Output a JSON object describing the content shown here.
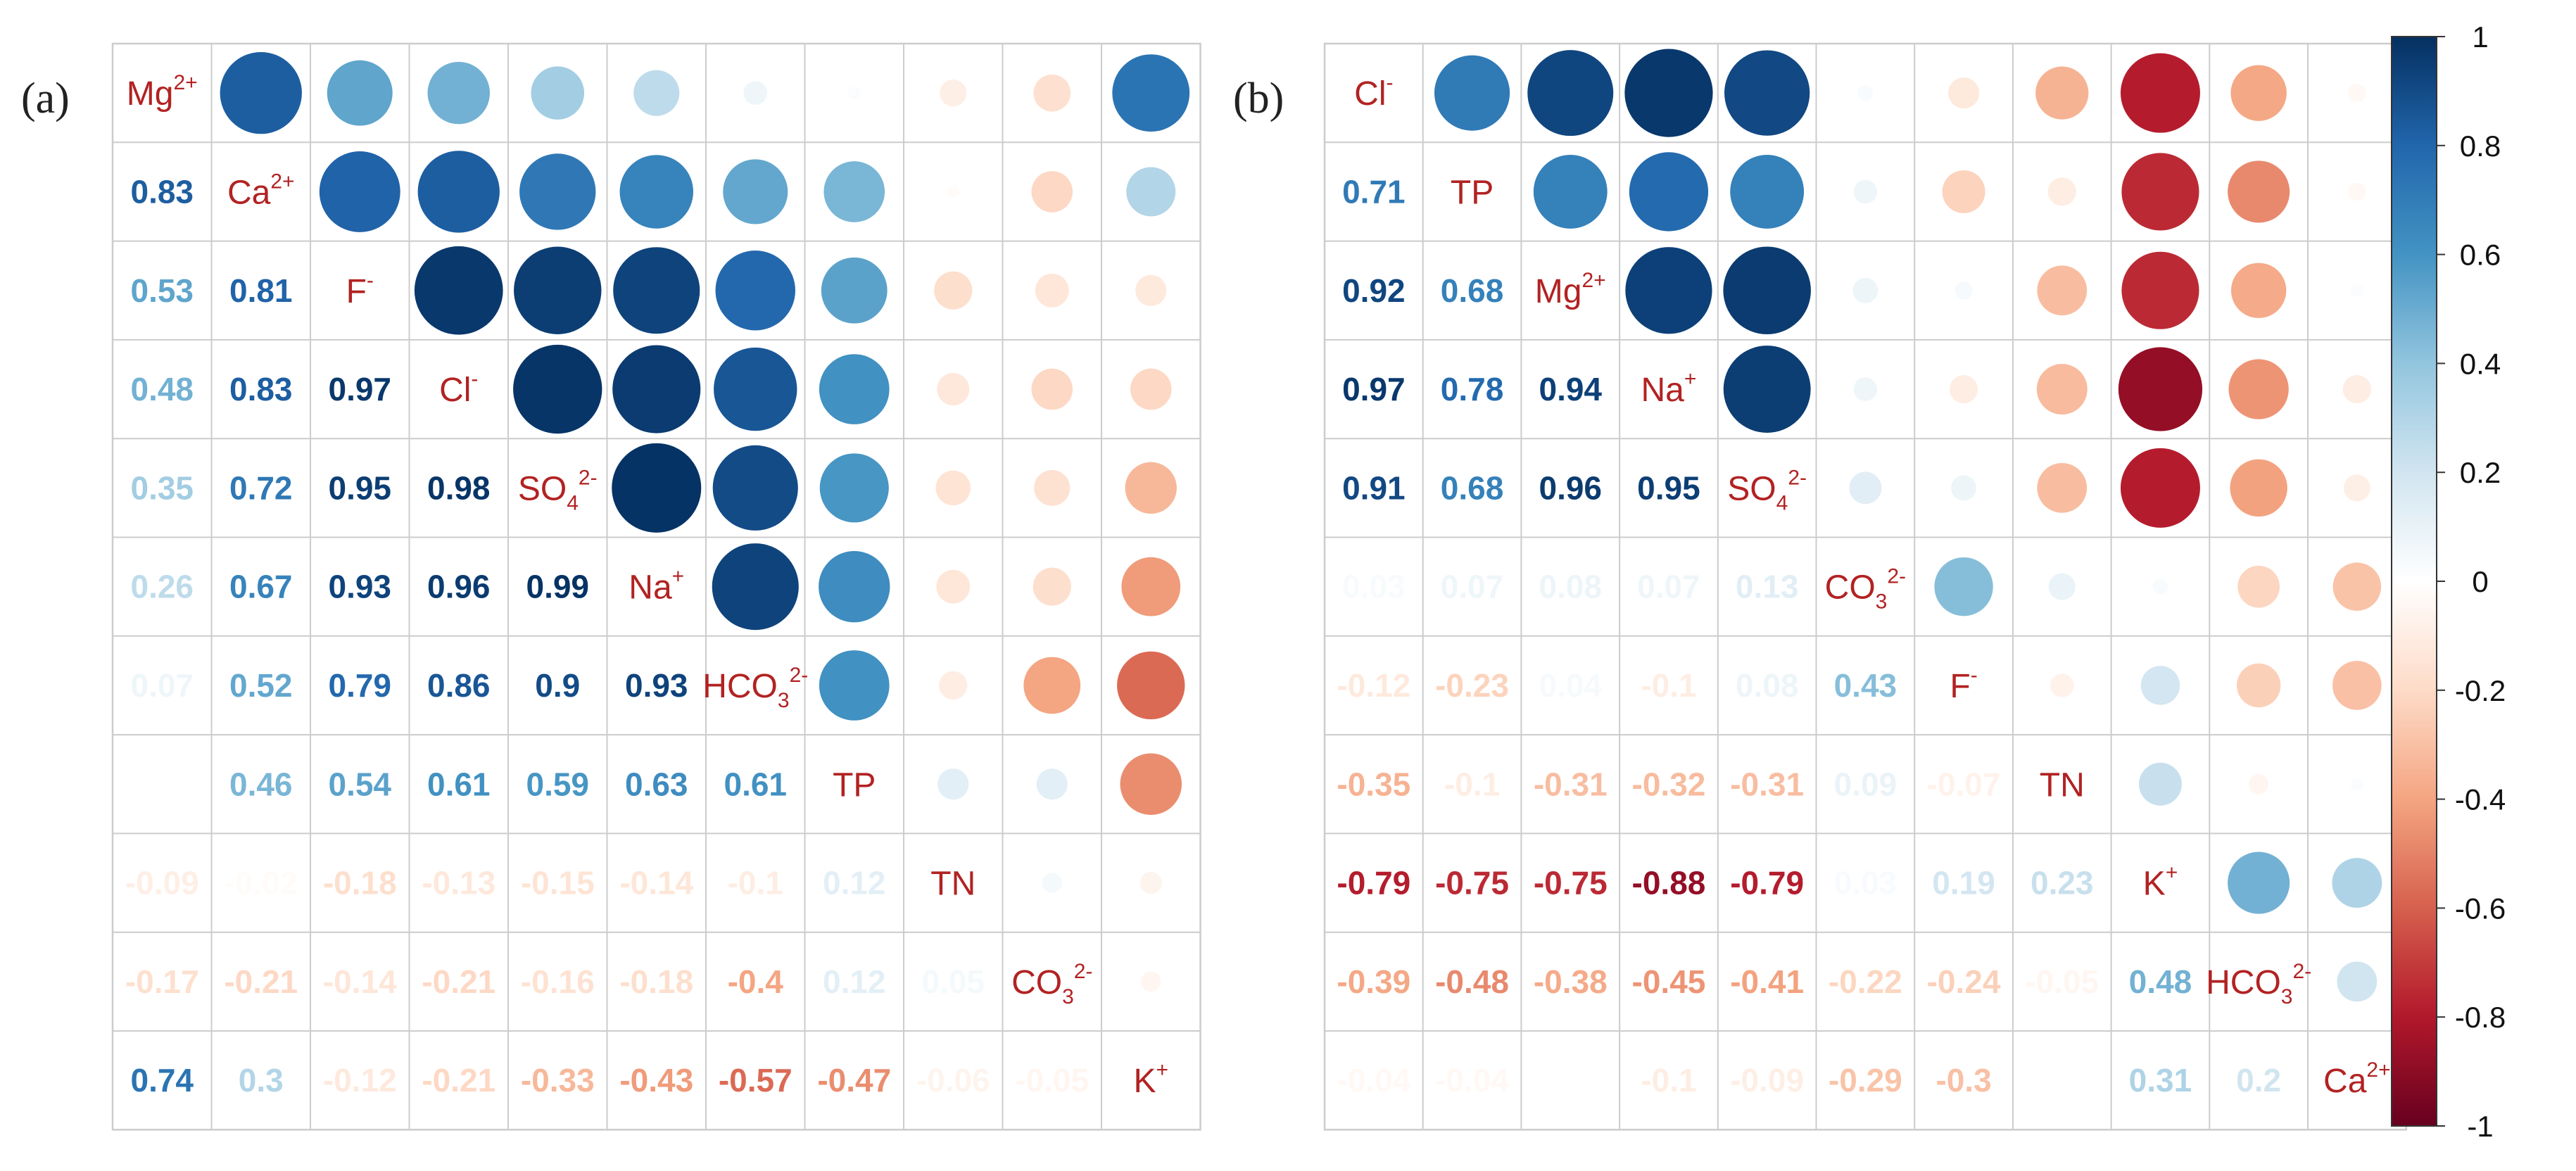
{
  "chart_data": [
    {
      "type": "heatmap",
      "panel": "(a)",
      "variables": [
        {
          "base": "Mg",
          "sup": "2+",
          "sub": ""
        },
        {
          "base": "Ca",
          "sup": "2+",
          "sub": ""
        },
        {
          "base": "F",
          "sup": "-",
          "sub": ""
        },
        {
          "base": "Cl",
          "sup": "-",
          "sub": ""
        },
        {
          "base": "SO",
          "sub": "4",
          "sup": "2-"
        },
        {
          "base": "Na",
          "sup": "+",
          "sub": ""
        },
        {
          "base": "HCO",
          "sub": "3",
          "sup": "2-"
        },
        {
          "base": "TP",
          "sup": "",
          "sub": ""
        },
        {
          "base": "TN",
          "sup": "",
          "sub": ""
        },
        {
          "base": "CO",
          "sub": "3",
          "sup": "2-"
        },
        {
          "base": "K",
          "sup": "+",
          "sub": ""
        }
      ],
      "lower_labels": [
        [],
        [
          "0.83"
        ],
        [
          "0.53",
          "0.81"
        ],
        [
          "0.48",
          "0.83",
          "0.97"
        ],
        [
          "0.35",
          "0.72",
          "0.95",
          "0.98"
        ],
        [
          "0.26",
          "0.67",
          "0.93",
          "0.96",
          "0.99"
        ],
        [
          "0.07",
          "0.52",
          "0.79",
          "0.86",
          "0.9",
          "0.93"
        ],
        [
          "",
          "0.46",
          "0.54",
          "0.61",
          "0.59",
          "0.63",
          "0.61"
        ],
        [
          "-0.09",
          "-0.02",
          "-0.18",
          "-0.13",
          "-0.15",
          "-0.14",
          "-0.1",
          "0.12"
        ],
        [
          "-0.17",
          "-0.21",
          "-0.14",
          "-0.21",
          "-0.16",
          "-0.18",
          "-0.4",
          "0.12",
          "0.05"
        ],
        [
          "0.74",
          "0.3",
          "-0.12",
          "-0.21",
          "-0.33",
          "-0.43",
          "-0.57",
          "-0.47",
          "-0.06",
          "-0.05"
        ]
      ],
      "matrix": [
        [
          1,
          0.83,
          0.53,
          0.48,
          0.35,
          0.26,
          0.07,
          0.02,
          -0.09,
          -0.17,
          0.74
        ],
        [
          0.83,
          1,
          0.81,
          0.83,
          0.72,
          0.67,
          0.52,
          0.46,
          -0.02,
          -0.21,
          0.3
        ],
        [
          0.53,
          0.81,
          1,
          0.97,
          0.95,
          0.93,
          0.79,
          0.54,
          -0.18,
          -0.14,
          -0.12
        ],
        [
          0.48,
          0.83,
          0.97,
          1,
          0.98,
          0.96,
          0.86,
          0.61,
          -0.13,
          -0.21,
          -0.21
        ],
        [
          0.35,
          0.72,
          0.95,
          0.98,
          1,
          0.99,
          0.9,
          0.59,
          -0.15,
          -0.16,
          -0.33
        ],
        [
          0.26,
          0.67,
          0.93,
          0.96,
          0.99,
          1,
          0.93,
          0.63,
          -0.14,
          -0.18,
          -0.43
        ],
        [
          0.07,
          0.52,
          0.79,
          0.86,
          0.9,
          0.93,
          1,
          0.61,
          -0.1,
          -0.4,
          -0.57
        ],
        [
          0.02,
          0.46,
          0.54,
          0.61,
          0.59,
          0.63,
          0.61,
          1,
          0.12,
          0.12,
          -0.47
        ],
        [
          -0.09,
          -0.02,
          -0.18,
          -0.13,
          -0.15,
          -0.14,
          -0.1,
          0.12,
          1,
          0.05,
          -0.06
        ],
        [
          -0.17,
          -0.21,
          -0.14,
          -0.21,
          -0.16,
          -0.18,
          -0.4,
          0.12,
          0.05,
          1,
          -0.05
        ],
        [
          0.74,
          0.3,
          -0.12,
          -0.21,
          -0.33,
          -0.43,
          -0.57,
          -0.47,
          -0.06,
          -0.05,
          1
        ]
      ]
    },
    {
      "type": "heatmap",
      "panel": "(b)",
      "variables": [
        {
          "base": "Cl",
          "sup": "-",
          "sub": ""
        },
        {
          "base": "TP",
          "sup": "",
          "sub": ""
        },
        {
          "base": "Mg",
          "sup": "2+",
          "sub": ""
        },
        {
          "base": "Na",
          "sup": "+",
          "sub": ""
        },
        {
          "base": "SO",
          "sub": "4",
          "sup": "2-"
        },
        {
          "base": "CO",
          "sub": "3",
          "sup": "2-"
        },
        {
          "base": "F",
          "sup": "-",
          "sub": ""
        },
        {
          "base": "TN",
          "sup": "",
          "sub": ""
        },
        {
          "base": "K",
          "sup": "+",
          "sub": ""
        },
        {
          "base": "HCO",
          "sub": "3",
          "sup": "2-"
        },
        {
          "base": "Ca",
          "sup": "2+",
          "sub": ""
        }
      ],
      "lower_labels": [
        [],
        [
          "0.71"
        ],
        [
          "0.92",
          "0.68"
        ],
        [
          "0.97",
          "0.78",
          "0.94"
        ],
        [
          "0.91",
          "0.68",
          "0.96",
          "0.95"
        ],
        [
          "0.03",
          "0.07",
          "0.08",
          "0.07",
          "0.13"
        ],
        [
          "-0.12",
          "-0.23",
          "0.04",
          "-0.1",
          "0.08",
          "0.43"
        ],
        [
          "-0.35",
          "-0.1",
          "-0.31",
          "-0.32",
          "-0.31",
          "0.09",
          "-0.07"
        ],
        [
          "-0.79",
          "-0.75",
          "-0.75",
          "-0.88",
          "-0.79",
          "0.03",
          "0.19",
          "0.23"
        ],
        [
          "-0.39",
          "-0.48",
          "-0.38",
          "-0.45",
          "-0.41",
          "-0.22",
          "-0.24",
          "-0.05",
          "0.48"
        ],
        [
          "-0.04",
          "-0.04",
          "",
          "-0.1",
          "-0.09",
          "-0.29",
          "-0.3",
          "",
          "0.31",
          "0.2"
        ]
      ],
      "matrix": [
        [
          1,
          0.71,
          0.92,
          0.97,
          0.91,
          0.03,
          -0.12,
          -0.35,
          -0.79,
          -0.39,
          -0.04
        ],
        [
          0.71,
          1,
          0.68,
          0.78,
          0.68,
          0.07,
          -0.23,
          -0.1,
          -0.75,
          -0.48,
          -0.04
        ],
        [
          0.92,
          0.68,
          1,
          0.94,
          0.96,
          0.08,
          0.04,
          -0.31,
          -0.75,
          -0.38,
          0.02
        ],
        [
          0.97,
          0.78,
          0.94,
          1,
          0.95,
          0.07,
          -0.1,
          -0.32,
          -0.88,
          -0.45,
          -0.1
        ],
        [
          0.91,
          0.68,
          0.96,
          0.95,
          1,
          0.13,
          0.08,
          -0.31,
          -0.79,
          -0.41,
          -0.09
        ],
        [
          0.03,
          0.07,
          0.08,
          0.07,
          0.13,
          1,
          0.43,
          0.09,
          0.03,
          -0.22,
          -0.29
        ],
        [
          -0.12,
          -0.23,
          0.04,
          -0.1,
          0.08,
          0.43,
          1,
          -0.07,
          0.19,
          -0.24,
          -0.3
        ],
        [
          -0.35,
          -0.1,
          -0.31,
          -0.32,
          -0.31,
          0.09,
          -0.07,
          1,
          0.23,
          -0.05,
          0.02
        ],
        [
          -0.79,
          -0.75,
          -0.75,
          -0.88,
          -0.79,
          0.03,
          0.19,
          0.23,
          1,
          0.48,
          0.31
        ],
        [
          -0.39,
          -0.48,
          -0.38,
          -0.45,
          -0.41,
          -0.22,
          -0.24,
          -0.05,
          0.48,
          1,
          0.2
        ],
        [
          -0.04,
          -0.04,
          0.02,
          -0.1,
          -0.09,
          -0.29,
          -0.3,
          0.02,
          0.31,
          0.2,
          1
        ]
      ]
    }
  ],
  "colorbar": {
    "range": [
      -1,
      1
    ],
    "tick_labels": [
      "1",
      "0.8",
      "0.6",
      "0.4",
      "0.2",
      "0",
      "-0.2",
      "-0.4",
      "-0.6",
      "-0.8",
      "-1"
    ],
    "palette": [
      "#67001f",
      "#b2182b",
      "#d6604d",
      "#f4a582",
      "#fddbc7",
      "#ffffff",
      "#d1e5f0",
      "#92c5de",
      "#4393c3",
      "#2166ac",
      "#053061"
    ]
  },
  "styles": {
    "diag_text_color": "#b22222",
    "grid_color": "#cccccc"
  }
}
